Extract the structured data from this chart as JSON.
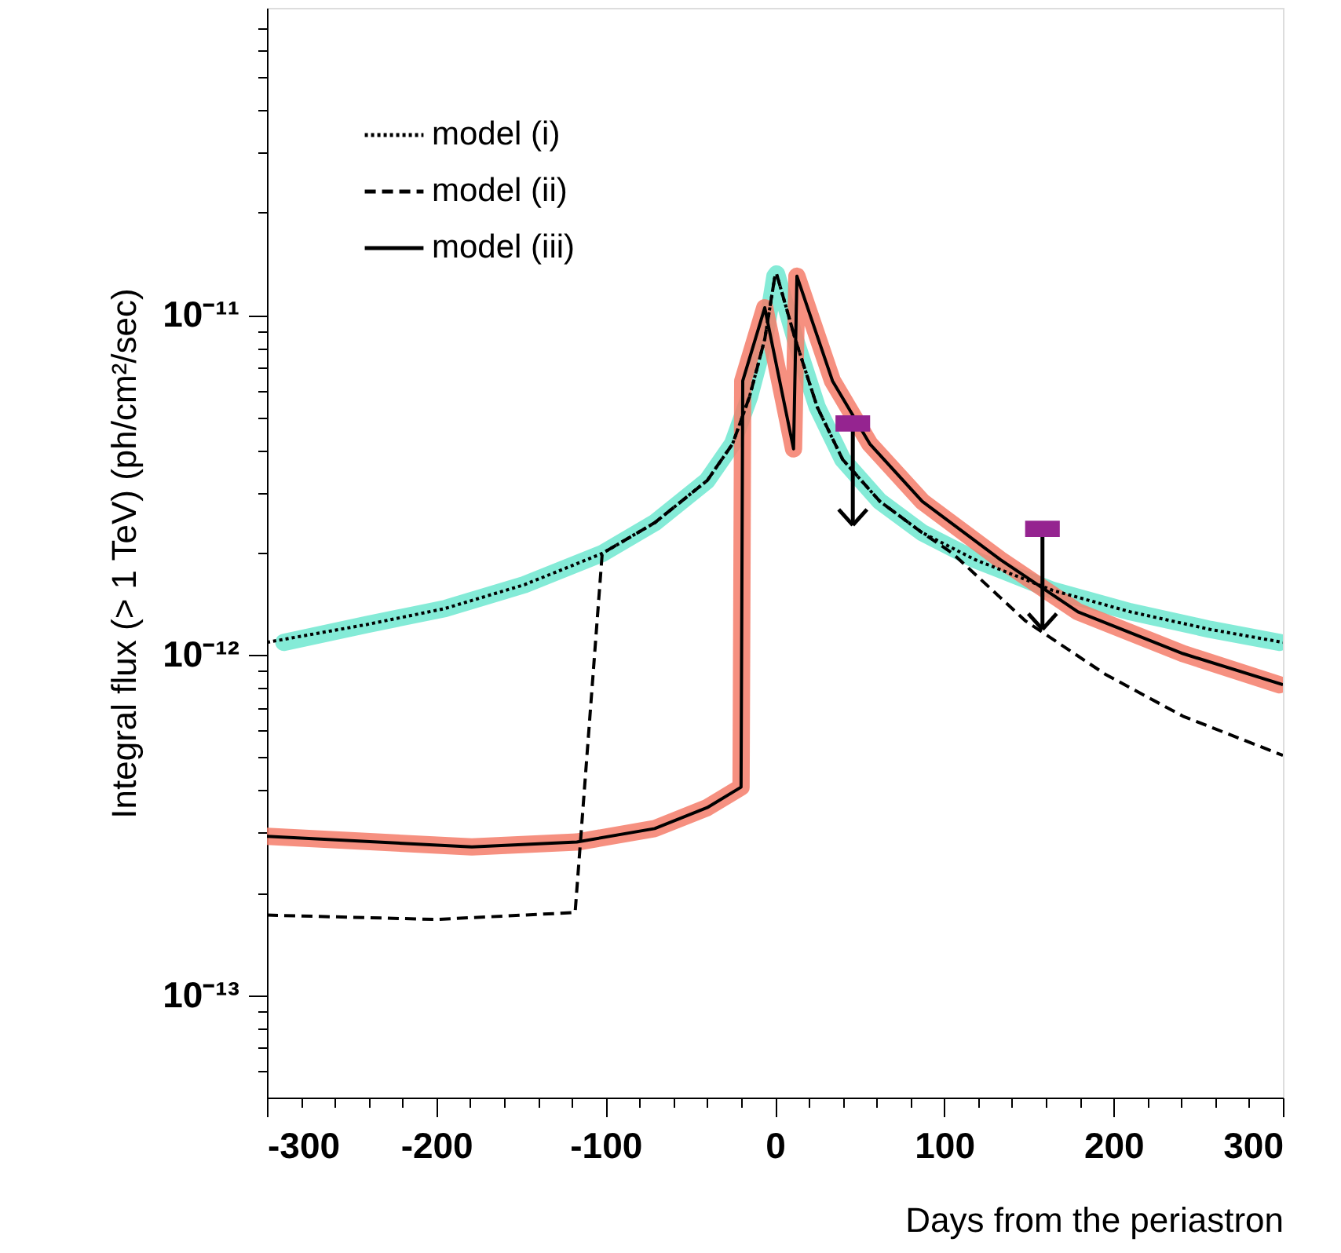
{
  "chart_data": {
    "type": "line",
    "xlabel": "Days from the periastron",
    "ylabel": "Integral flux (> 1 TeV) (ph/cm²/sec)",
    "log": "y",
    "grid": false,
    "legend": "top left",
    "xlim": [
      -300,
      300
    ],
    "ylim": [
      5e-14,
      8e-11
    ],
    "xticks": [
      -300,
      {
        "value": -280,
        "label": null
      },
      {
        "value": -260,
        "label": null
      },
      {
        "value": -240,
        "label": null
      },
      {
        "value": -220,
        "label": null
      },
      -200,
      {
        "value": -180,
        "label": null
      },
      {
        "value": -160,
        "label": null
      },
      {
        "value": -140,
        "label": null
      },
      {
        "value": -120,
        "label": null
      },
      -100,
      {
        "value": -80,
        "label": null
      },
      {
        "value": -60,
        "label": null
      },
      {
        "value": -40,
        "label": null
      },
      {
        "value": -20,
        "label": null
      },
      0,
      {
        "value": 20,
        "label": null
      },
      {
        "value": 40,
        "label": null
      },
      {
        "value": 60,
        "label": null
      },
      {
        "value": 80,
        "label": null
      },
      100,
      {
        "value": 120,
        "label": null
      },
      {
        "value": 140,
        "label": null
      },
      {
        "value": 160,
        "label": null
      },
      {
        "value": 180,
        "label": null
      },
      200,
      {
        "value": 220,
        "label": null
      },
      {
        "value": 240,
        "label": null
      },
      {
        "value": 260,
        "label": null
      },
      {
        "value": 280,
        "label": null
      },
      300
    ],
    "yticks": [
      {
        "value": 6e-14,
        "label": null
      },
      {
        "value": 7e-14,
        "label": null
      },
      {
        "value": 8e-14,
        "label": null
      },
      {
        "value": 9e-14,
        "label": null
      },
      {
        "value": 1e-13,
        "label": "10⁻¹³"
      },
      {
        "value": 2e-13,
        "label": null
      },
      {
        "value": 3e-13,
        "label": null
      },
      {
        "value": 4e-13,
        "label": null
      },
      {
        "value": 5e-13,
        "label": null
      },
      {
        "value": 6e-13,
        "label": null
      },
      {
        "value": 7e-13,
        "label": null
      },
      {
        "value": 8e-13,
        "label": null
      },
      {
        "value": 9e-13,
        "label": null
      },
      {
        "value": 1e-12,
        "label": "10⁻¹²"
      },
      {
        "value": 2e-12,
        "label": null
      },
      {
        "value": 3e-12,
        "label": null
      },
      {
        "value": 4e-12,
        "label": null
      },
      {
        "value": 5e-12,
        "label": null
      },
      {
        "value": 6e-12,
        "label": null
      },
      {
        "value": 7e-12,
        "label": null
      },
      {
        "value": 8e-12,
        "label": null
      },
      {
        "value": 9e-12,
        "label": null
      },
      {
        "value": 1e-11,
        "label": "10⁻¹¹"
      },
      {
        "value": 2e-11,
        "label": null
      },
      {
        "value": 3e-11,
        "label": null
      },
      {
        "value": 4e-11,
        "label": null
      },
      {
        "value": 5e-11,
        "label": null
      },
      {
        "value": 6e-11,
        "label": null
      },
      {
        "value": 7e-11,
        "label": null
      }
    ],
    "series": [
      {
        "type": "line",
        "color": "#6fe8d0",
        "line_style": "solid",
        "x": [
          -290,
          -241,
          -195,
          -148,
          -102,
          -71,
          -40,
          -25,
          -15,
          -6,
          0,
          1,
          12,
          25,
          40,
          62,
          87,
          118,
          164,
          210,
          257,
          298
        ],
        "values": [
          1.09e-12,
          1.23e-12,
          1.37e-12,
          1.61e-12,
          1.99e-12,
          2.45e-12,
          3.26e-12,
          4.18e-12,
          5.75e-12,
          8.49e-12,
          1.3e-11,
          1.32e-11,
          8.49e-12,
          5.36e-12,
          3.76e-12,
          2.83e-12,
          2.29e-12,
          1.91e-12,
          1.55e-12,
          1.34e-12,
          1.19e-12,
          1.09e-12
        ]
      },
      {
        "type": "line",
        "color": "#f47c6a",
        "line_style": "solid",
        "x": [
          -300,
          -179,
          -117,
          -71,
          -40,
          -20,
          -19,
          -6,
          11,
          13,
          34,
          56,
          87,
          133,
          179,
          241,
          298
        ],
        "values": [
          2.93e-13,
          2.73e-13,
          2.82e-13,
          3.09e-13,
          3.56e-13,
          4.09e-13,
          6.4e-12,
          1.05e-11,
          4.04e-12,
          1.3e-11,
          6.4e-12,
          4.18e-12,
          2.83e-12,
          1.91e-12,
          1.34e-12,
          1.01e-12,
          8.18e-13
        ]
      },
      {
        "type": "line",
        "name": "model (i)",
        "color": "#000000",
        "line_style": "dotted",
        "x": [
          -300,
          -241,
          -195,
          -148,
          -102,
          -71,
          -40,
          -25,
          -15,
          -6,
          0,
          1,
          12,
          25,
          40,
          62,
          87,
          118,
          164,
          210,
          257,
          300
        ],
        "values": [
          1.09e-12,
          1.23e-12,
          1.37e-12,
          1.61e-12,
          1.99e-12,
          2.45e-12,
          3.26e-12,
          4.18e-12,
          5.75e-12,
          8.49e-12,
          1.3e-11,
          1.32e-11,
          8.49e-12,
          5.36e-12,
          3.76e-12,
          2.83e-12,
          2.29e-12,
          1.91e-12,
          1.55e-12,
          1.34e-12,
          1.19e-12,
          1.09e-12
        ]
      },
      {
        "type": "line",
        "name": "model (ii)",
        "color": "#000000",
        "line_style": "dashed",
        "x": [
          -300,
          -200,
          -118,
          -102,
          -71,
          -40,
          -25,
          -15,
          -6,
          0,
          1,
          12,
          25,
          40,
          62,
          87,
          105,
          148,
          195,
          241,
          300
        ],
        "values": [
          1.72e-13,
          1.67e-13,
          1.75e-13,
          1.99e-12,
          2.45e-12,
          3.26e-12,
          4.18e-12,
          5.75e-12,
          8.49e-12,
          1.3e-11,
          1.32e-11,
          8.49e-12,
          5.36e-12,
          3.76e-12,
          2.83e-12,
          2.29e-12,
          1.99e-12,
          1.26e-12,
          8.79e-13,
          6.61e-13,
          5.07e-13
        ]
      },
      {
        "type": "line",
        "name": "model (iii)",
        "color": "#000000",
        "line_style": "solid",
        "x": [
          -300,
          -179,
          -117,
          -71,
          -40,
          -20,
          -19,
          -6,
          11,
          13,
          34,
          56,
          87,
          133,
          179,
          241,
          300
        ],
        "values": [
          2.93e-13,
          2.73e-13,
          2.82e-13,
          3.09e-13,
          3.56e-13,
          4.09e-13,
          6.4e-12,
          1.05e-11,
          4.04e-12,
          1.3e-11,
          6.4e-12,
          4.18e-12,
          2.83e-12,
          1.91e-12,
          1.34e-12,
          1.01e-12,
          8.18e-13
        ]
      },
      {
        "type": "scatter",
        "color": "#952490",
        "marker": "square",
        "x": [
          46,
          158
        ],
        "values": [
          4.8e-12,
          2.35e-12
        ],
        "errors": [
          [
            2.41e-12,
            4.8e-12
          ],
          [
            1.19e-12,
            2.35e-12
          ]
        ]
      }
    ]
  }
}
